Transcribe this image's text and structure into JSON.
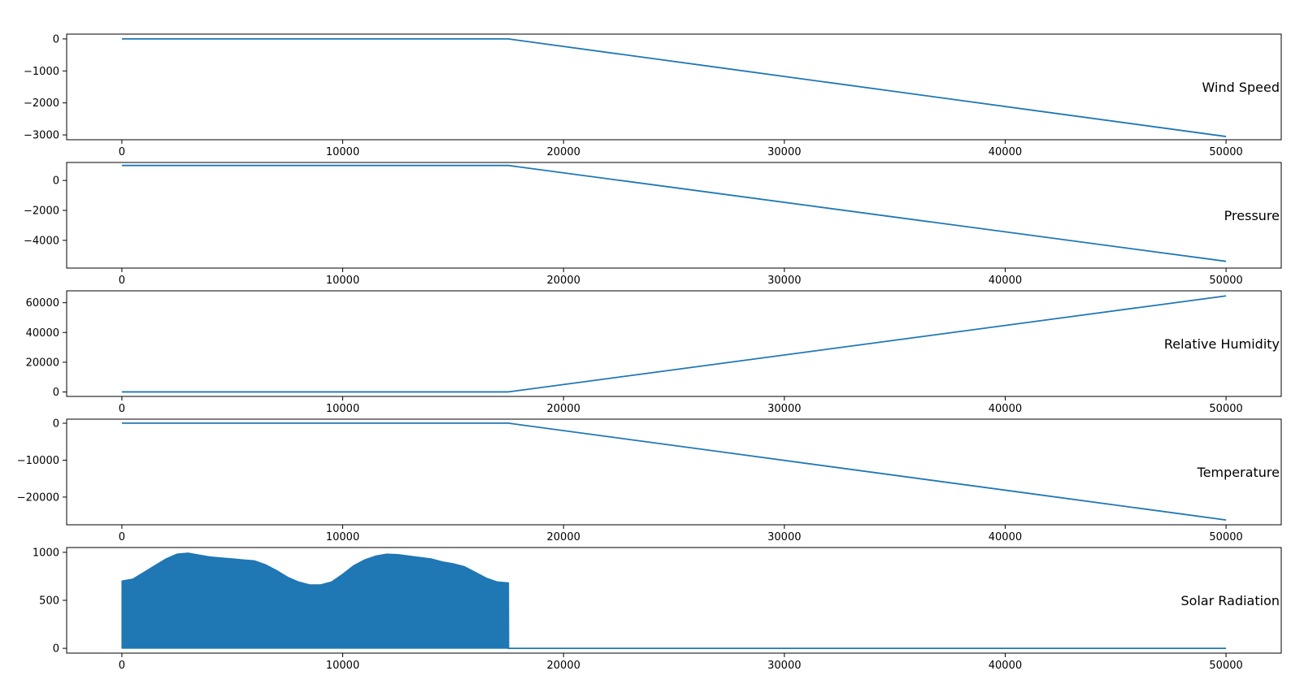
{
  "chart_data": [
    {
      "type": "line",
      "title": "Wind Speed",
      "xlim": [
        -2500,
        52500
      ],
      "ylim": [
        -3150,
        150
      ],
      "x_ticks": [
        0,
        10000,
        20000,
        30000,
        40000,
        50000
      ],
      "x_tick_labels": [
        "0",
        "10000",
        "20000",
        "30000",
        "40000",
        "50000"
      ],
      "y_ticks": [
        0,
        -1000,
        -2000,
        -3000
      ],
      "y_tick_labels": [
        "0",
        "−1000",
        "−2000",
        "−3000"
      ],
      "color": "#1f77b4",
      "x": [
        0,
        17500,
        50000
      ],
      "y": [
        0,
        0,
        -3050
      ]
    },
    {
      "type": "line",
      "title": "Pressure",
      "xlim": [
        -2500,
        52500
      ],
      "ylim": [
        -5850,
        1200
      ],
      "x_ticks": [
        0,
        10000,
        20000,
        30000,
        40000,
        50000
      ],
      "x_tick_labels": [
        "0",
        "10000",
        "20000",
        "30000",
        "40000",
        "50000"
      ],
      "y_ticks": [
        0,
        -2000,
        -4000
      ],
      "y_tick_labels": [
        "0",
        "−2000",
        "−4000"
      ],
      "color": "#1f77b4",
      "x": [
        0,
        17500,
        50000
      ],
      "y": [
        1000,
        1000,
        -5400
      ]
    },
    {
      "type": "line",
      "title": "Relative Humidity",
      "xlim": [
        -2500,
        52500
      ],
      "ylim": [
        -3000,
        68000
      ],
      "x_ticks": [
        0,
        10000,
        20000,
        30000,
        40000,
        50000
      ],
      "x_tick_labels": [
        "0",
        "10000",
        "20000",
        "30000",
        "40000",
        "50000"
      ],
      "y_ticks": [
        0,
        20000,
        40000,
        60000
      ],
      "y_tick_labels": [
        "0",
        "20000",
        "40000",
        "60000"
      ],
      "color": "#1f77b4",
      "x": [
        0,
        17500,
        50000
      ],
      "y": [
        50,
        50,
        64600
      ]
    },
    {
      "type": "line",
      "title": "Temperature",
      "xlim": [
        -2500,
        52500
      ],
      "ylim": [
        -27500,
        1100
      ],
      "x_ticks": [
        0,
        10000,
        20000,
        30000,
        40000,
        50000
      ],
      "x_tick_labels": [
        "0",
        "10000",
        "20000",
        "30000",
        "40000",
        "50000"
      ],
      "y_ticks": [
        0,
        -10000,
        -20000
      ],
      "y_tick_labels": [
        "0",
        "−10000",
        "−20000"
      ],
      "color": "#1f77b4",
      "x": [
        0,
        17500,
        50000
      ],
      "y": [
        20,
        20,
        -26200
      ]
    },
    {
      "type": "area",
      "title": "Solar Radiation",
      "xlim": [
        -2500,
        52500
      ],
      "ylim": [
        -50,
        1050
      ],
      "x_ticks": [
        0,
        10000,
        20000,
        30000,
        40000,
        50000
      ],
      "x_tick_labels": [
        "0",
        "10000",
        "20000",
        "30000",
        "40000",
        "50000"
      ],
      "y_ticks": [
        0,
        500,
        1000
      ],
      "y_tick_labels": [
        "0",
        "500",
        "1000"
      ],
      "color": "#1f77b4",
      "x": [
        0,
        500,
        1000,
        1500,
        2000,
        2500,
        3000,
        3500,
        4000,
        4500,
        5000,
        5500,
        6000,
        6500,
        7000,
        7500,
        8000,
        8500,
        9000,
        9500,
        10000,
        10500,
        11000,
        11500,
        12000,
        12500,
        13000,
        13500,
        14000,
        14500,
        15000,
        15500,
        16000,
        16500,
        17000,
        17500,
        17510,
        50000
      ],
      "y": [
        700,
        720,
        790,
        860,
        930,
        980,
        990,
        970,
        950,
        940,
        930,
        920,
        910,
        870,
        810,
        740,
        690,
        660,
        660,
        690,
        770,
        860,
        920,
        960,
        980,
        975,
        960,
        945,
        930,
        900,
        880,
        850,
        790,
        730,
        690,
        680,
        0,
        0
      ]
    }
  ]
}
